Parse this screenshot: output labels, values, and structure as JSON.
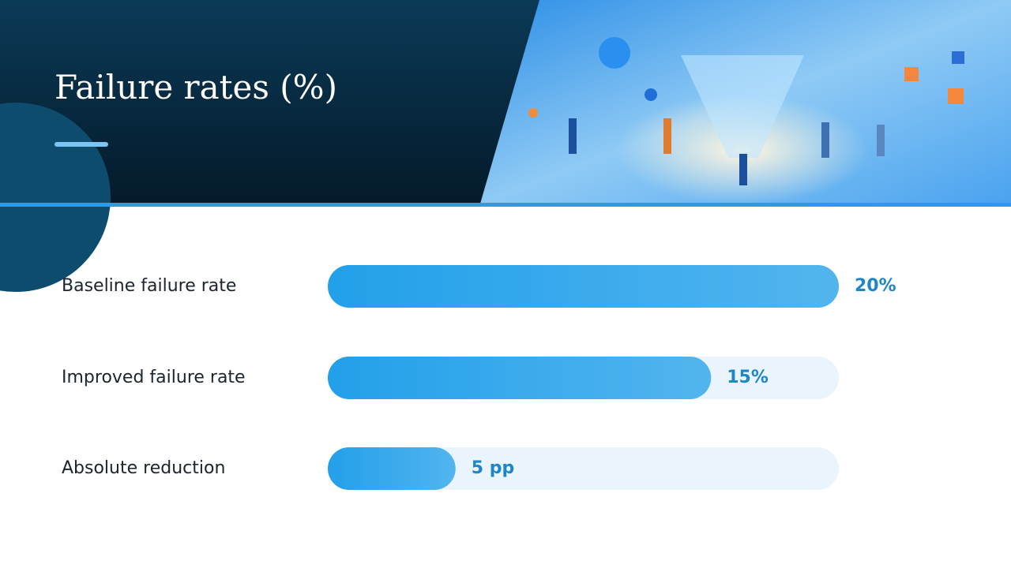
{
  "chart_data": {
    "type": "bar",
    "orientation": "horizontal",
    "title": "Failure rates (%)",
    "categories": [
      "Baseline failure rate",
      "Improved failure rate",
      "Absolute reduction"
    ],
    "values": [
      20,
      15,
      5
    ],
    "value_labels": [
      "20%",
      "15%",
      "5 pp"
    ],
    "color": "#22a0ea",
    "xlim": [
      0,
      20
    ]
  }
}
